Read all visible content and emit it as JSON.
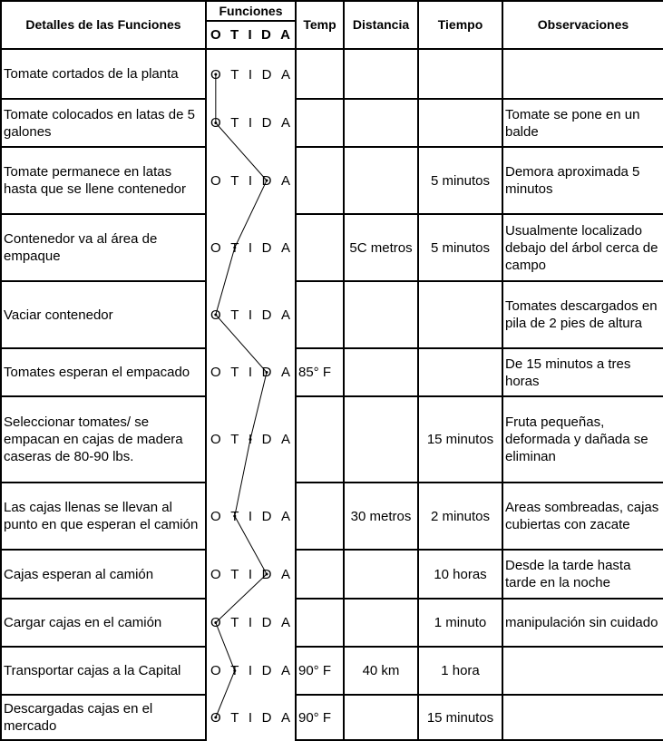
{
  "header": {
    "details": "Detalles de las Funciones",
    "functions": "Funciones",
    "symbols": [
      "O",
      "T",
      "I",
      "D",
      "A"
    ],
    "temp": "Temp",
    "distance": "Distancia",
    "time": "Tiempo",
    "observations": "Observaciones"
  },
  "rows": [
    {
      "detail": "Tomate cortados de la planta",
      "selected": "O",
      "temp": "",
      "distance": "",
      "time": "",
      "obs": ""
    },
    {
      "detail": "Tomate colocados en latas de 5 galones",
      "selected": "O",
      "temp": "",
      "distance": "",
      "time": "",
      "obs": "Tomate se pone en un balde"
    },
    {
      "detail": "Tomate permanece en latas hasta que se llene contenedor",
      "selected": "D",
      "temp": "",
      "distance": "",
      "time": "5 minutos",
      "obs": "Demora aproximada 5 minutos"
    },
    {
      "detail": "Contenedor va al área de empaque",
      "selected": "T",
      "temp": "",
      "distance": "5C metros",
      "time": "5 minutos",
      "obs": "Usualmente localizado debajo del árbol cerca de campo"
    },
    {
      "detail": "Vaciar contenedor",
      "selected": "O",
      "temp": "",
      "distance": "",
      "time": "",
      "obs": "Tomates descargados en pila de 2 pies de altura"
    },
    {
      "detail": "Tomates esperan el empacado",
      "selected": "D",
      "temp": "85° F",
      "distance": "",
      "time": "",
      "obs": "De 15 minutos a tres horas"
    },
    {
      "detail": "Seleccionar tomates/ se empacan en cajas de madera caseras de 80-90 lbs.",
      "selected": "I",
      "temp": "",
      "distance": "",
      "time": "15 minutos",
      "obs": "Fruta pequeñas, deformada y dañada se eliminan"
    },
    {
      "detail": "Las cajas llenas se llevan al punto en que esperan el camión",
      "selected": "T",
      "temp": "",
      "distance": "30 metros",
      "time": "2 minutos",
      "obs": "Areas sombreadas, cajas cubiertas con zacate"
    },
    {
      "detail": "Cajas esperan al camión",
      "selected": "D",
      "temp": "",
      "distance": "",
      "time": "10 horas",
      "obs": "Desde la tarde hasta tarde en la noche"
    },
    {
      "detail": "Cargar cajas en el camión",
      "selected": "O",
      "temp": "",
      "distance": "",
      "time": "1 minuto",
      "obs": "manipulación sin cuidado"
    },
    {
      "detail": "Transportar cajas a la Capital",
      "selected": "T",
      "temp": "90° F",
      "distance": "40 km",
      "time": "1 hora",
      "obs": ""
    },
    {
      "detail": "Descargadas cajas en el mercado",
      "selected": "O",
      "temp": "90° F",
      "distance": "",
      "time": "15 minutos",
      "obs": ""
    }
  ]
}
